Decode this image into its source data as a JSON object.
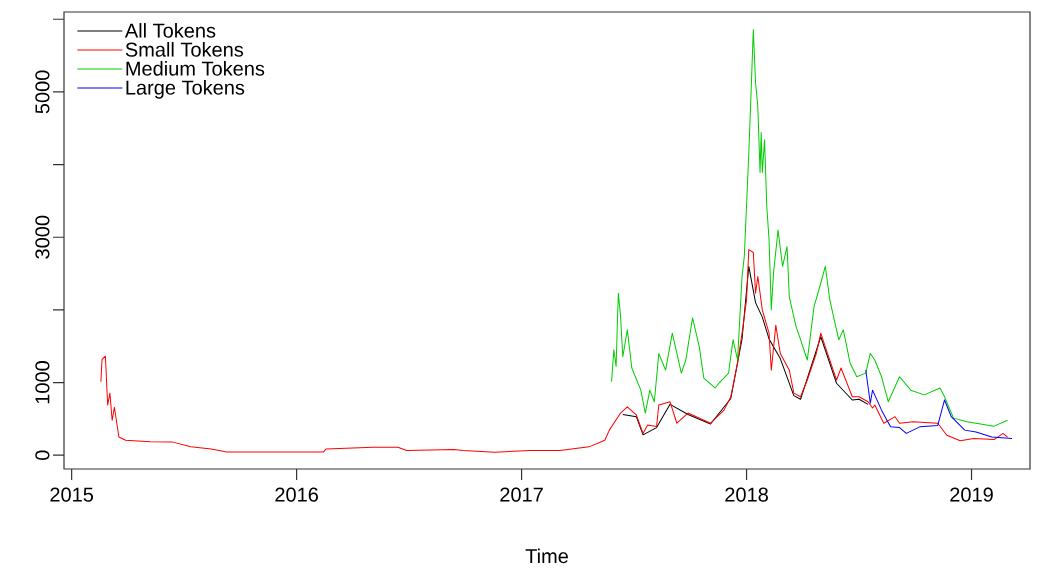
{
  "chart_data": {
    "type": "line",
    "xlabel": "Time",
    "xlim": [
      2014.966,
      2019.26
    ],
    "ylim": [
      -190,
      6100
    ],
    "xticks": [
      2015,
      2016,
      2017,
      2018,
      2019
    ],
    "yticks": [
      0,
      1000,
      {
        "value": 2000,
        "label": null
      },
      3000,
      {
        "value": 4000,
        "label": null
      },
      5000,
      {
        "value": 6000,
        "label": null
      }
    ],
    "legend": "top left",
    "series": [
      {
        "name": "All Tokens",
        "color": "#000000",
        "x": [
          2017.45,
          2017.51,
          2017.54,
          2017.6,
          2017.66,
          2017.74,
          2017.84,
          2017.93,
          2017.98,
          2018.01,
          2018.04,
          2018.07,
          2018.1,
          2018.15,
          2018.21,
          2018.24,
          2018.33,
          2018.4,
          2018.47,
          2018.5,
          2018.54
        ],
        "values": [
          560,
          530,
          280,
          380,
          700,
          560,
          430,
          780,
          1600,
          2600,
          2100,
          1900,
          1600,
          1330,
          820,
          770,
          1630,
          990,
          760,
          770,
          700
        ]
      },
      {
        "name": "Small Tokens",
        "color": "#ff0000",
        "x": [
          2015.13,
          2015.135,
          2015.15,
          2015.16,
          2015.17,
          2015.18,
          2015.19,
          2015.21,
          2015.24,
          2015.35,
          2015.45,
          2015.53,
          2015.62,
          2015.69,
          2016.12,
          2016.13,
          2016.34,
          2016.45,
          2016.49,
          2016.7,
          2016.74,
          2016.88,
          2017.04,
          2017.17,
          2017.3,
          2017.37,
          2017.39,
          2017.44,
          2017.47,
          2017.51,
          2017.54,
          2017.56,
          2017.6,
          2017.61,
          2017.66,
          2017.69,
          2017.74,
          2017.84,
          2017.9,
          2017.93,
          2017.96,
          2017.98,
          2018.0,
          2018.01,
          2018.03,
          2018.04,
          2018.05,
          2018.07,
          2018.1,
          2018.11,
          2018.13,
          2018.15,
          2018.19,
          2018.21,
          2018.24,
          2018.27,
          2018.31,
          2018.33,
          2018.35,
          2018.4,
          2018.42,
          2018.47,
          2018.5,
          2018.54,
          2018.56,
          2018.57,
          2018.61,
          2018.66,
          2018.68,
          2018.74,
          2018.85,
          2018.89,
          2018.95,
          2019.01,
          2019.1,
          2019.14,
          2019.16
        ],
        "values": [
          1010,
          1320,
          1365,
          690,
          855,
          480,
          660,
          250,
          205,
          185,
          180,
          115,
          85,
          45,
          45,
          85,
          110,
          110,
          65,
          80,
          65,
          40,
          65,
          65,
          115,
          205,
          345,
          580,
          665,
          555,
          300,
          415,
          395,
          690,
          735,
          440,
          580,
          440,
          620,
          805,
          1270,
          1680,
          2140,
          2830,
          2790,
          2230,
          2460,
          2000,
          1680,
          1170,
          1790,
          1400,
          1170,
          855,
          805,
          1035,
          1400,
          1680,
          1490,
          1035,
          1200,
          805,
          805,
          735,
          650,
          690,
          440,
          530,
          440,
          460,
          440,
          275,
          200,
          230,
          215,
          300,
          250
        ]
      },
      {
        "name": "Medium Tokens",
        "color": "#00cd00",
        "x": [
          2017.4,
          2017.41,
          2017.42,
          2017.43,
          2017.44,
          2017.45,
          2017.47,
          2017.49,
          2017.53,
          2017.55,
          2017.57,
          2017.59,
          2017.61,
          2017.64,
          2017.67,
          2017.71,
          2017.73,
          2017.76,
          2017.79,
          2017.81,
          2017.86,
          2017.88,
          2017.92,
          2017.94,
          2017.96,
          2017.98,
          2017.99,
          2018.01,
          2018.02,
          2018.03,
          2018.04,
          2018.05,
          2018.06,
          2018.065,
          2018.07,
          2018.08,
          2018.09,
          2018.1,
          2018.11,
          2018.12,
          2018.14,
          2018.16,
          2018.18,
          2018.19,
          2018.22,
          2018.24,
          2018.27,
          2018.3,
          2018.33,
          2018.35,
          2018.37,
          2018.39,
          2018.41,
          2018.43,
          2018.46,
          2018.49,
          2018.53,
          2018.55,
          2018.57,
          2018.6,
          2018.63,
          2018.68,
          2018.73,
          2018.79,
          2018.86,
          2018.88,
          2018.92,
          2018.98,
          2019.1,
          2019.16
        ],
        "values": [
          1010,
          1450,
          1220,
          2230,
          1910,
          1355,
          1725,
          1200,
          895,
          580,
          895,
          735,
          1400,
          1170,
          1680,
          1130,
          1310,
          1890,
          1490,
          1060,
          925,
          1000,
          1130,
          1590,
          1310,
          2460,
          2735,
          4160,
          4990,
          5860,
          5130,
          4800,
          3890,
          4440,
          3890,
          4340,
          3420,
          2965,
          2000,
          2510,
          3100,
          2600,
          2870,
          2180,
          1770,
          1590,
          1310,
          2045,
          2370,
          2600,
          2140,
          1860,
          1590,
          1725,
          1270,
          1080,
          1130,
          1400,
          1310,
          1080,
          735,
          1080,
          895,
          830,
          925,
          805,
          510,
          460,
          400,
          480
        ]
      },
      {
        "name": "Large Tokens",
        "color": "#0000ff",
        "x": [
          2018.53,
          2018.55,
          2018.56,
          2018.6,
          2018.64,
          2018.68,
          2018.71,
          2018.77,
          2018.85,
          2018.88,
          2018.91,
          2018.97,
          2019.02,
          2019.09,
          2019.18
        ],
        "values": [
          1170,
          715,
          895,
          620,
          390,
          380,
          300,
          390,
          410,
          760,
          530,
          345,
          320,
          250,
          230
        ]
      }
    ]
  }
}
